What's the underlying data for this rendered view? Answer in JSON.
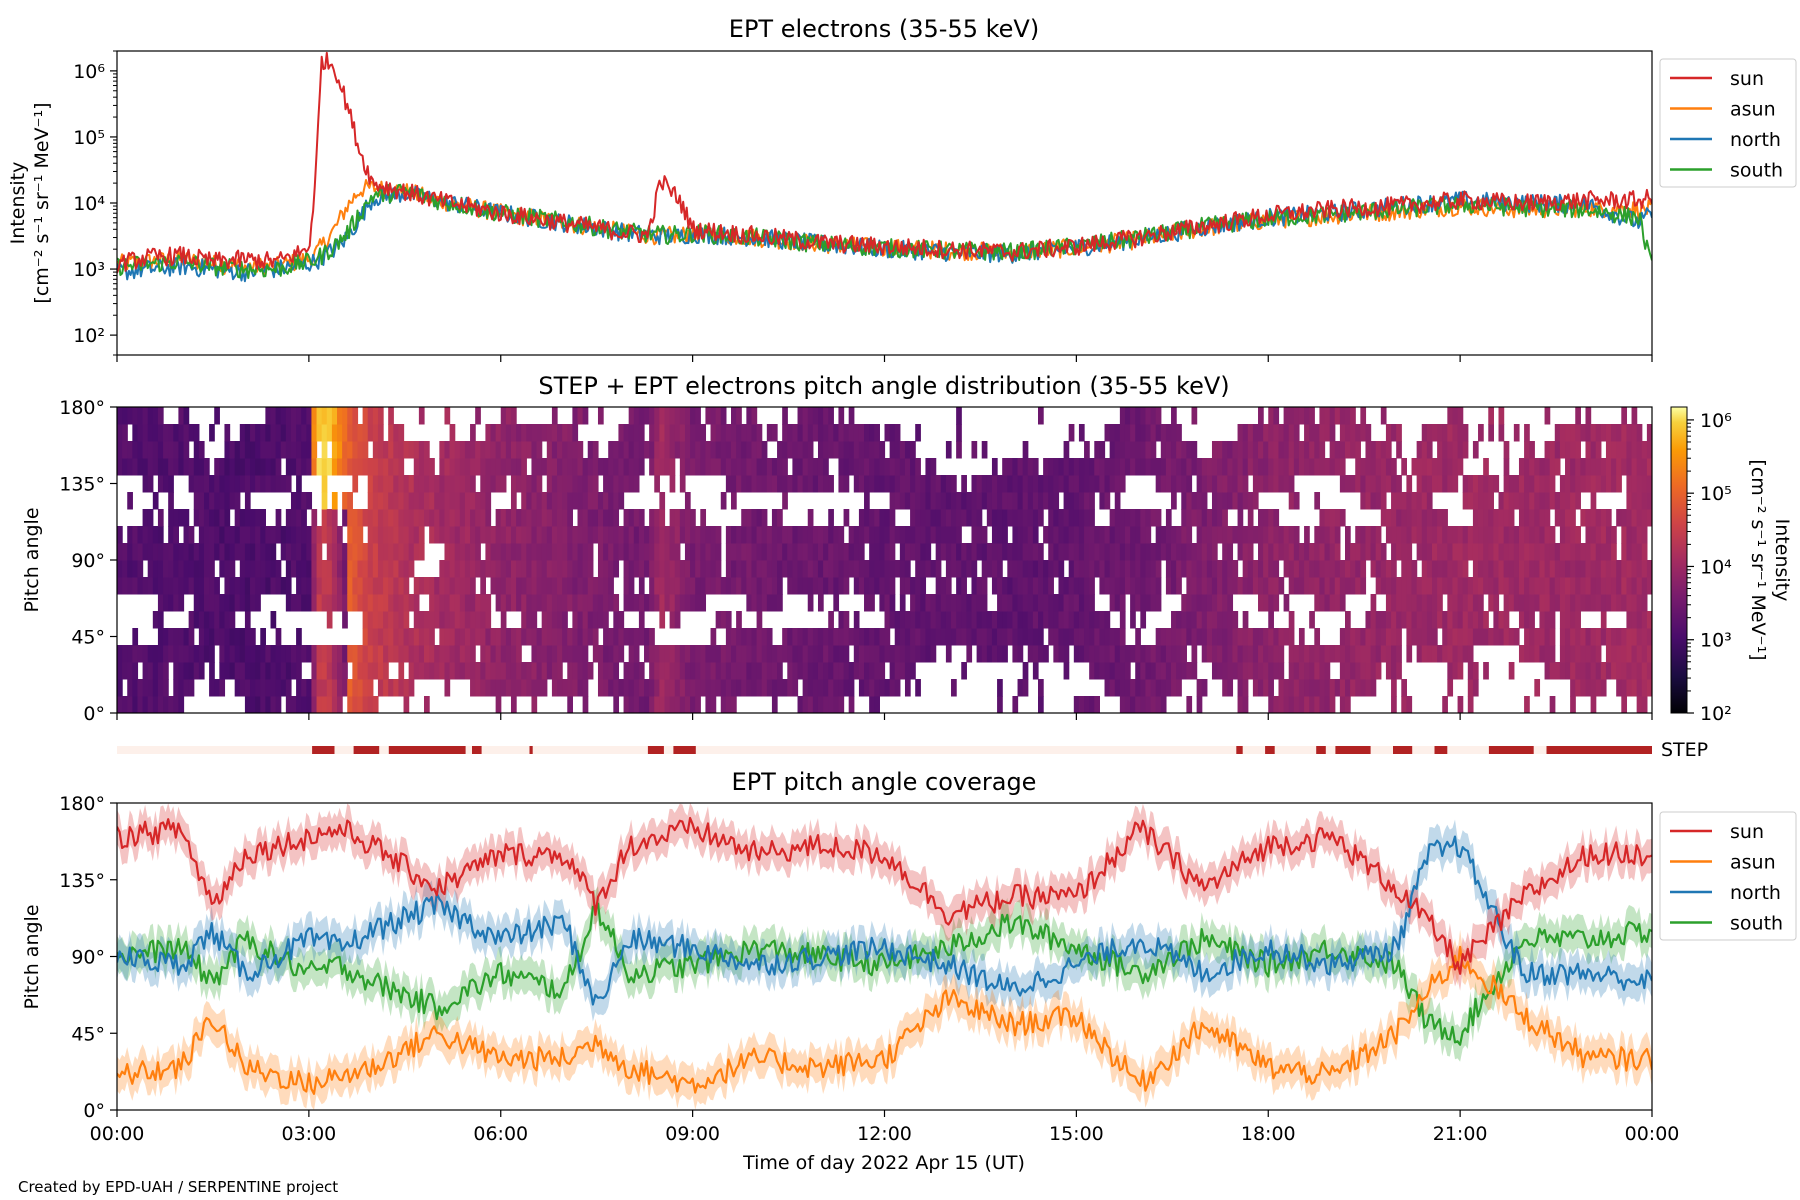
{
  "credit": "Created by EPD-UAH / SERPENTINE project",
  "chart_data": [
    {
      "type": "line",
      "title": "EPT electrons (35-55 keV)",
      "ylabel": [
        "Intensity",
        "[cm⁻² s⁻¹ sr⁻¹ MeV⁻¹]"
      ],
      "y_scale": "log",
      "ylim": [
        50,
        2000000
      ],
      "yticks": [
        {
          "v": 100,
          "label": "10²"
        },
        {
          "v": 1000,
          "label": "10³"
        },
        {
          "v": 10000,
          "label": "10⁴"
        },
        {
          "v": 100000,
          "label": "10⁵"
        },
        {
          "v": 1000000,
          "label": "10⁶"
        }
      ],
      "xlim_hours": [
        0,
        24
      ],
      "x": [
        0,
        0.5,
        1,
        1.5,
        2,
        2.5,
        3,
        3.1,
        3.2,
        3.4,
        3.6,
        3.8,
        4,
        4.5,
        5,
        6,
        7,
        8,
        8.3,
        8.5,
        8.8,
        9,
        10,
        11,
        12,
        13,
        14,
        15,
        16,
        17,
        18,
        19,
        20,
        21,
        22,
        23,
        23.8,
        24
      ],
      "series": [
        {
          "name": "sun",
          "color": "#d62728",
          "values": [
            1200,
            1500,
            1600,
            1300,
            1400,
            1300,
            2000,
            20000,
            1500000,
            1200000,
            300000,
            60000,
            20000,
            15000,
            11000,
            7000,
            5000,
            3500,
            3200,
            22000,
            11000,
            4000,
            3200,
            2500,
            2200,
            2000,
            1800,
            2200,
            3000,
            4500,
            6500,
            8000,
            9000,
            11000,
            10000,
            11000,
            11000,
            12000
          ]
        },
        {
          "name": "asun",
          "color": "#ff7f0e",
          "values": [
            1200,
            1300,
            1400,
            1200,
            1100,
            1100,
            1400,
            1700,
            2200,
            4000,
            9000,
            16000,
            17000,
            15000,
            11000,
            7000,
            5000,
            3500,
            3300,
            3200,
            3200,
            3500,
            3000,
            2400,
            2100,
            1900,
            1800,
            2100,
            2800,
            4200,
            5500,
            6500,
            7500,
            9000,
            8000,
            8500,
            8000,
            8000
          ]
        },
        {
          "name": "north",
          "color": "#1f77b4",
          "values": [
            900,
            1000,
            1100,
            1000,
            900,
            1000,
            1200,
            1300,
            1500,
            2000,
            3000,
            6000,
            12000,
            14000,
            11000,
            7000,
            5000,
            3500,
            3300,
            3200,
            3200,
            3400,
            3000,
            2400,
            2000,
            1800,
            1700,
            2100,
            2900,
            4300,
            6000,
            7000,
            9000,
            11000,
            10000,
            9500,
            5000,
            7000
          ]
        },
        {
          "name": "south",
          "color": "#2ca02c",
          "values": [
            1100,
            1200,
            1300,
            1100,
            1000,
            1000,
            1300,
            1400,
            1600,
            2200,
            3500,
            7000,
            13000,
            15000,
            11000,
            7000,
            5200,
            3600,
            3400,
            3300,
            3300,
            3500,
            3000,
            2400,
            2100,
            1900,
            1800,
            2200,
            3000,
            4400,
            5800,
            6800,
            8000,
            9500,
            8500,
            8000,
            6000,
            1000
          ]
        }
      ],
      "legend": "right, outside"
    },
    {
      "type": "heatmap",
      "title": "STEP + EPT electrons pitch angle distribution (35-55 keV)",
      "ylabel": "Pitch angle",
      "yticks": [
        "0°",
        "45°",
        "90°",
        "135°",
        "180°"
      ],
      "ylim": [
        0,
        180
      ],
      "colorbar": {
        "label": [
          "Intensity",
          "[cm⁻² s⁻¹ sr⁻¹ MeV⁻¹]"
        ],
        "scale": "log",
        "range": [
          100,
          1500000
        ],
        "ticks": [
          {
            "v": 100,
            "label": "10²"
          },
          {
            "v": 1000,
            "label": "10³"
          },
          {
            "v": 10000,
            "label": "10⁴"
          },
          {
            "v": 100000,
            "label": "10⁵"
          },
          {
            "v": 1000000,
            "label": "10⁶"
          }
        ],
        "colormap": "inferno"
      },
      "intensity_by_hour": {
        "x": [
          0,
          1,
          2,
          3,
          3.1,
          3.3,
          3.6,
          4,
          4.5,
          5,
          6,
          7,
          8,
          8.3,
          8.5,
          8.8,
          9,
          10,
          11,
          12,
          13,
          14,
          15,
          16,
          17,
          18,
          19,
          20,
          21,
          22,
          23,
          24
        ],
        "values": [
          1400,
          1400,
          1200,
          1300,
          800000,
          900000,
          90000,
          30000,
          17000,
          12000,
          7000,
          5000,
          3500,
          3200,
          12000,
          6000,
          3800,
          3200,
          2600,
          2200,
          2000,
          1900,
          2200,
          3000,
          4300,
          6200,
          7500,
          8500,
          10000,
          9500,
          10000,
          11000
        ]
      }
    },
    {
      "type": "bar",
      "label": "STEP",
      "step_intervals_hours": [
        [
          3.05,
          3.4
        ],
        [
          3.7,
          4.1
        ],
        [
          4.25,
          5.45
        ],
        [
          5.55,
          5.7
        ],
        [
          6.45,
          6.5
        ],
        [
          8.3,
          8.55
        ],
        [
          8.7,
          9.05
        ],
        [
          17.5,
          17.6
        ],
        [
          17.95,
          18.1
        ],
        [
          18.75,
          18.9
        ],
        [
          19.05,
          19.6
        ],
        [
          19.95,
          20.25
        ],
        [
          20.6,
          20.8
        ],
        [
          21.45,
          22.15
        ],
        [
          22.35,
          24.0
        ]
      ],
      "colors": {
        "on": "#b22222",
        "off": "#fdf0ea"
      }
    },
    {
      "type": "line",
      "title": "EPT pitch angle coverage",
      "ylabel": "Pitch angle",
      "xlabel": "Time of day 2022 Apr 15 (UT)",
      "ylim": [
        0,
        180
      ],
      "yticks": [
        "0°",
        "45°",
        "90°",
        "135°",
        "180°"
      ],
      "xticks": [
        "00:00",
        "03:00",
        "06:00",
        "09:00",
        "12:00",
        "15:00",
        "18:00",
        "21:00",
        "00:00"
      ],
      "x": [
        0,
        1,
        1.5,
        2,
        3,
        3.5,
        4,
        5,
        6,
        7,
        7.5,
        8,
        9,
        10,
        11,
        12,
        13,
        14,
        15,
        16,
        17,
        18,
        19,
        20,
        20.5,
        21,
        22,
        23,
        24
      ],
      "band_halfwidth_deg": 10,
      "series": [
        {
          "name": "sun",
          "color": "#d62728",
          "values": [
            160,
            165,
            120,
            150,
            160,
            165,
            155,
            130,
            150,
            150,
            120,
            155,
            165,
            150,
            155,
            150,
            115,
            125,
            125,
            165,
            130,
            155,
            160,
            130,
            110,
            85,
            125,
            150,
            150
          ]
        },
        {
          "name": "asun",
          "color": "#ff7f0e",
          "values": [
            20,
            25,
            55,
            25,
            15,
            20,
            25,
            45,
            30,
            30,
            40,
            25,
            15,
            30,
            25,
            30,
            65,
            50,
            55,
            15,
            50,
            25,
            20,
            45,
            70,
            90,
            55,
            30,
            30
          ]
        },
        {
          "name": "north",
          "color": "#1f77b4",
          "values": [
            90,
            85,
            105,
            80,
            100,
            95,
            105,
            120,
            100,
            110,
            60,
            100,
            95,
            85,
            90,
            95,
            85,
            70,
            85,
            100,
            80,
            95,
            85,
            95,
            150,
            155,
            80,
            80,
            75
          ]
        },
        {
          "name": "south",
          "color": "#2ca02c",
          "values": [
            90,
            95,
            75,
            100,
            80,
            85,
            75,
            60,
            80,
            70,
            120,
            80,
            85,
            95,
            90,
            85,
            95,
            110,
            95,
            80,
            100,
            85,
            95,
            85,
            50,
            45,
            100,
            100,
            105
          ]
        }
      ],
      "legend": "right, outside"
    }
  ]
}
